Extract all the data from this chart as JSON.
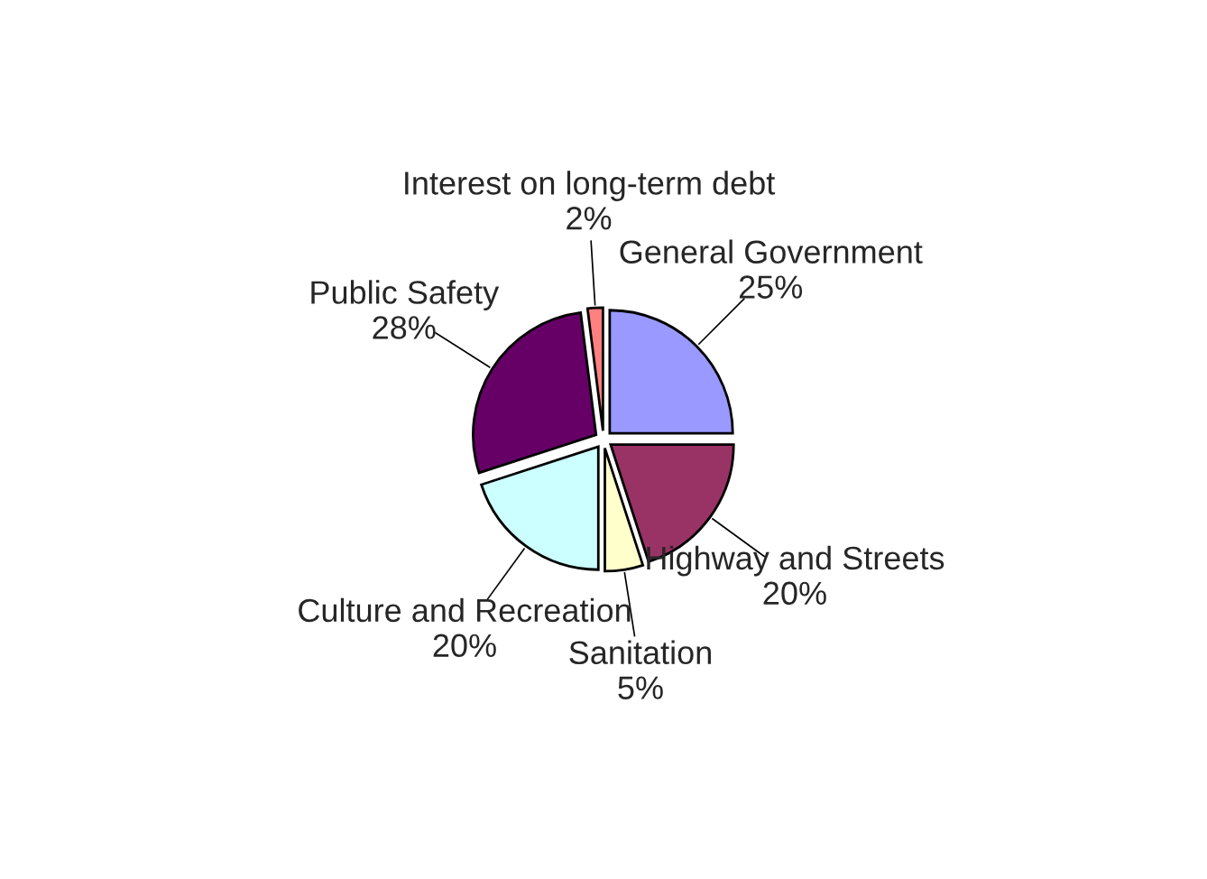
{
  "chart_data": {
    "type": "pie",
    "categories": [
      "General Government",
      "Highway and Streets",
      "Sanitation",
      "Culture and Recreation",
      "Public Safety",
      "Interest on long-term debt"
    ],
    "values": [
      25,
      20,
      5,
      20,
      28,
      2
    ],
    "value_labels": [
      "25%",
      "20%",
      "5%",
      "20%",
      "28%",
      "2%"
    ],
    "colors": [
      "#9999ff",
      "#993366",
      "#ffffcc",
      "#ccffff",
      "#660066",
      "#ff8080"
    ]
  }
}
